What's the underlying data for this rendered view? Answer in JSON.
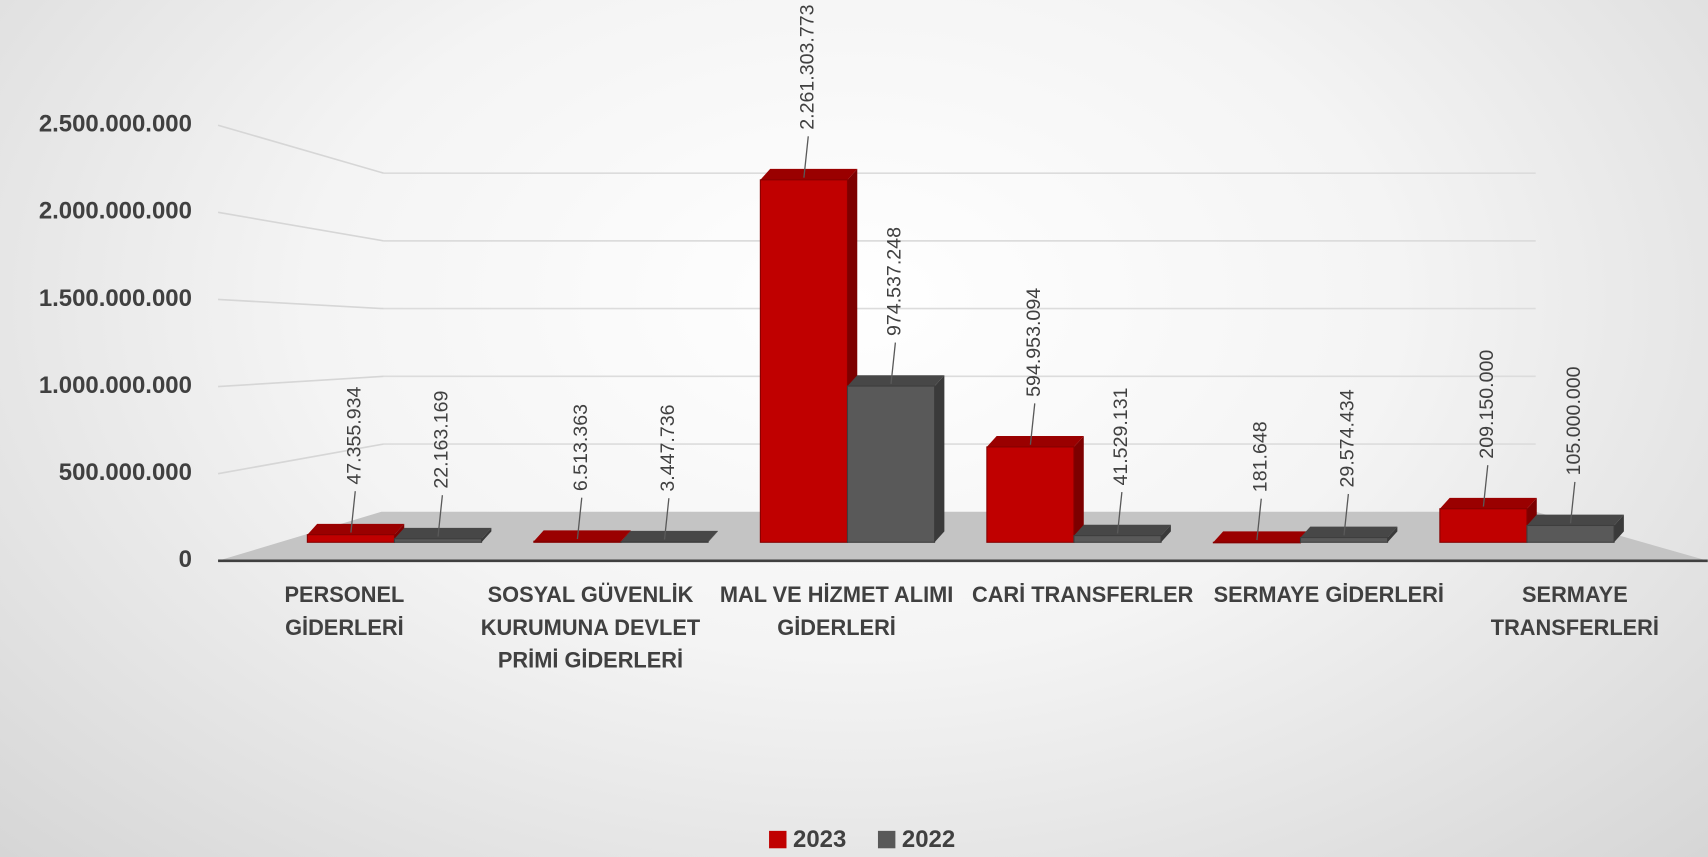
{
  "chart_data": {
    "type": "bar3d",
    "categories": [
      "PERSONEL GİDERLERİ",
      "SOSYAL GÜVENLİK KURUMUNA DEVLET PRİMİ GİDERLERİ",
      "MAL VE HİZMET ALIMI GİDERLERİ",
      "CARİ TRANSFERLER",
      "SERMAYE GİDERLERİ",
      "SERMAYE TRANSFERLERİ"
    ],
    "series": [
      {
        "name": "2023",
        "color": "#c00000",
        "values": [
          47355934,
          6513363,
          2261303773,
          594953094,
          181648,
          209150000
        ],
        "value_labels": [
          "47.355.934",
          "6.513.363",
          "2.261.303.773",
          "594.953.094",
          "181.648",
          "209.150.000"
        ]
      },
      {
        "name": "2022",
        "color": "#595959",
        "values": [
          22163169,
          3447736,
          974537248,
          41529131,
          29574434,
          105000000
        ],
        "value_labels": [
          "22.163.169",
          "3.447.736",
          "974.537.248",
          "41.529.131",
          "29.574.434",
          "105.000.000"
        ]
      }
    ],
    "ylim": [
      0,
      2500000000
    ],
    "yticks": [
      0,
      {
        "value": 500000000,
        "label": "500.000.000"
      },
      {
        "value": 1000000000,
        "label": "1.000.000.000"
      },
      {
        "value": 1500000000,
        "label": "1.500.000.000"
      },
      {
        "value": 2000000000,
        "label": "2.000.000.000"
      },
      {
        "value": 2500000000,
        "label": "2.500.000.000"
      }
    ],
    "grid": true,
    "legend": "bottom"
  }
}
